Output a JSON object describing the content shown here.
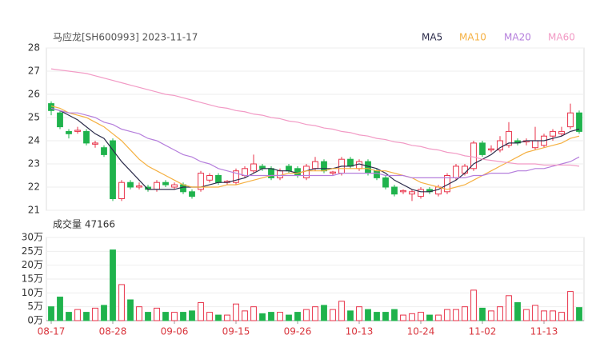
{
  "chart_data": {
    "type": "candlestick",
    "title": "马应龙[SH600993] 2023-11-17",
    "volume_title": "成交量 47166",
    "categories": [
      "08-17",
      null,
      null,
      null,
      null,
      null,
      null,
      "08-28",
      null,
      null,
      null,
      null,
      null,
      null,
      "09-06",
      null,
      null,
      null,
      null,
      null,
      null,
      "09-15",
      null,
      null,
      null,
      null,
      null,
      null,
      "09-26",
      null,
      null,
      null,
      null,
      null,
      null,
      "10-13",
      null,
      null,
      null,
      null,
      null,
      null,
      "10-24",
      null,
      null,
      null,
      null,
      null,
      null,
      "11-02",
      null,
      null,
      null,
      null,
      null,
      null,
      "11-13",
      null,
      null,
      null,
      null
    ],
    "open": [
      25.6,
      25.2,
      24.4,
      24.4,
      24.4,
      23.85,
      23.7,
      24.0,
      21.5,
      22.2,
      22.0,
      22.0,
      21.9,
      22.2,
      22.0,
      22.1,
      21.8,
      21.9,
      22.3,
      22.5,
      22.2,
      22.2,
      22.5,
      22.7,
      22.9,
      22.8,
      22.4,
      22.9,
      22.8,
      22.4,
      22.8,
      23.1,
      22.6,
      22.6,
      23.2,
      22.8,
      23.1,
      22.7,
      22.4,
      22.0,
      21.8,
      21.7,
      21.6,
      21.9,
      21.7,
      21.8,
      22.4,
      22.6,
      22.8,
      23.9,
      23.6,
      23.6,
      23.8,
      24.0,
      23.95,
      23.7,
      23.8,
      24.2,
      24.3,
      24.6,
      25.2
    ],
    "high": [
      25.7,
      25.3,
      24.5,
      24.6,
      24.5,
      24.0,
      23.8,
      24.1,
      22.3,
      22.3,
      22.2,
      22.1,
      22.3,
      22.3,
      22.2,
      22.2,
      21.9,
      22.7,
      22.6,
      22.6,
      22.3,
      22.8,
      22.9,
      23.4,
      23.0,
      22.9,
      22.8,
      23.0,
      22.9,
      23.0,
      23.3,
      23.2,
      22.7,
      23.3,
      23.3,
      23.2,
      23.2,
      22.8,
      22.5,
      22.1,
      21.9,
      21.9,
      22.0,
      22.0,
      22.1,
      22.6,
      23.0,
      23.0,
      24.0,
      24.0,
      23.8,
      24.2,
      24.8,
      24.1,
      24.1,
      24.6,
      24.3,
      24.5,
      24.6,
      25.6,
      25.3
    ],
    "low": [
      25.1,
      24.5,
      24.1,
      24.3,
      23.8,
      23.7,
      23.3,
      21.4,
      21.4,
      21.9,
      21.9,
      21.8,
      21.8,
      22.0,
      21.9,
      21.7,
      21.5,
      21.8,
      22.2,
      22.1,
      22.1,
      22.1,
      22.4,
      22.6,
      22.7,
      22.3,
      22.3,
      22.6,
      22.4,
      22.3,
      22.7,
      22.6,
      22.5,
      22.5,
      22.8,
      22.7,
      22.5,
      22.3,
      21.9,
      21.6,
      21.7,
      21.4,
      21.5,
      21.7,
      21.6,
      21.7,
      22.3,
      22.5,
      22.7,
      23.3,
      23.5,
      23.5,
      23.7,
      23.8,
      23.8,
      23.6,
      23.7,
      24.0,
      24.2,
      24.5,
      24.3
    ],
    "close": [
      25.3,
      24.6,
      24.3,
      24.45,
      23.9,
      23.9,
      23.4,
      21.5,
      22.2,
      22.0,
      22.05,
      21.9,
      22.2,
      22.1,
      22.1,
      21.8,
      21.6,
      22.6,
      22.5,
      22.2,
      22.25,
      22.7,
      22.8,
      23.0,
      22.8,
      22.4,
      22.7,
      22.7,
      22.5,
      22.9,
      23.1,
      22.7,
      22.65,
      23.2,
      22.9,
      23.1,
      22.6,
      22.4,
      22.0,
      21.7,
      21.85,
      21.8,
      21.9,
      21.8,
      22.0,
      22.5,
      22.9,
      22.9,
      23.9,
      23.4,
      23.65,
      24.0,
      24.4,
      23.9,
      24.0,
      24.0,
      24.2,
      24.4,
      24.4,
      25.2,
      24.4
    ],
    "volume": [
      5,
      8.5,
      3,
      4,
      3,
      4.5,
      5.5,
      25.5,
      13,
      7.5,
      5,
      3,
      4.5,
      3,
      3,
      3,
      3.5,
      6.5,
      3,
      2,
      2,
      6,
      3.5,
      5,
      2.5,
      3,
      3,
      2,
      3,
      4,
      5,
      5.5,
      4,
      7,
      3.5,
      5,
      4,
      3,
      3,
      4,
      2,
      2.5,
      3,
      2,
      2,
      4,
      4,
      5,
      11,
      4.5,
      3.5,
      5,
      9,
      6.5,
      4,
      5.5,
      3.5,
      3.5,
      3,
      10.5,
      4.7166
    ],
    "up_color": "#e8334a",
    "down_color": "#1fb34c",
    "ylim": [
      21,
      28
    ],
    "yticks": [
      21,
      22,
      23,
      24,
      25,
      26,
      27,
      28
    ],
    "vlim": [
      0,
      30
    ],
    "vticks": [
      {
        "value": 0,
        "label": "0万"
      },
      {
        "value": 5,
        "label": "5万"
      },
      {
        "value": 10,
        "label": "10万"
      },
      {
        "value": 15,
        "label": "15万"
      },
      {
        "value": 20,
        "label": "20万"
      },
      {
        "value": 25,
        "label": "25万"
      },
      {
        "value": 30,
        "label": "30万"
      }
    ],
    "series": [
      {
        "name": "MA5",
        "color": "#2b2b4a",
        "values": [
          25.4,
          25.3,
          25.1,
          24.9,
          24.6,
          24.3,
          24.1,
          23.6,
          23.1,
          22.7,
          22.3,
          21.9,
          21.9,
          21.9,
          21.9,
          22.0,
          22.0,
          22.0,
          22.1,
          22.2,
          22.2,
          22.3,
          22.4,
          22.6,
          22.8,
          22.8,
          22.7,
          22.7,
          22.6,
          22.7,
          22.8,
          22.8,
          22.8,
          22.9,
          22.9,
          23.0,
          22.9,
          22.8,
          22.6,
          22.3,
          22.1,
          21.9,
          21.8,
          21.8,
          21.9,
          22.1,
          22.3,
          22.6,
          23.0,
          23.2,
          23.4,
          23.7,
          23.9,
          23.9,
          24.0,
          24.0,
          24.0,
          24.1,
          24.2,
          24.4,
          24.5
        ]
      },
      {
        "name": "MA10",
        "color": "#f5b041",
        "values": [
          25.5,
          25.4,
          25.2,
          25.1,
          25.0,
          24.8,
          24.6,
          24.3,
          24.0,
          23.6,
          23.2,
          22.9,
          22.7,
          22.5,
          22.3,
          22.1,
          22.0,
          22.0,
          22.0,
          22.0,
          22.1,
          22.1,
          22.2,
          22.3,
          22.4,
          22.5,
          22.5,
          22.6,
          22.6,
          22.7,
          22.7,
          22.7,
          22.8,
          22.8,
          22.8,
          22.8,
          22.8,
          22.7,
          22.7,
          22.6,
          22.5,
          22.4,
          22.2,
          22.1,
          22.0,
          21.9,
          22.0,
          22.1,
          22.3,
          22.5,
          22.7,
          22.9,
          23.1,
          23.3,
          23.5,
          23.6,
          23.7,
          23.8,
          23.9,
          24.1,
          24.2
        ]
      },
      {
        "name": "MA20",
        "color": "#b57edc",
        "values": [
          25.4,
          25.3,
          25.2,
          25.2,
          25.1,
          25.0,
          24.8,
          24.7,
          24.5,
          24.4,
          24.3,
          24.1,
          24.0,
          23.8,
          23.6,
          23.4,
          23.3,
          23.1,
          23.0,
          22.8,
          22.7,
          22.6,
          22.5,
          22.5,
          22.5,
          22.5,
          22.5,
          22.5,
          22.5,
          22.5,
          22.5,
          22.5,
          22.5,
          22.6,
          22.6,
          22.6,
          22.6,
          22.6,
          22.5,
          22.5,
          22.5,
          22.4,
          22.4,
          22.4,
          22.4,
          22.4,
          22.4,
          22.4,
          22.5,
          22.5,
          22.6,
          22.6,
          22.6,
          22.7,
          22.7,
          22.8,
          22.8,
          22.9,
          23.0,
          23.1,
          23.3
        ]
      },
      {
        "name": "MA60",
        "color": "#f29ac5",
        "values": [
          27.1,
          27.05,
          27.0,
          26.95,
          26.9,
          26.8,
          26.7,
          26.6,
          26.5,
          26.4,
          26.3,
          26.2,
          26.1,
          26.0,
          25.95,
          25.85,
          25.75,
          25.65,
          25.55,
          25.45,
          25.4,
          25.3,
          25.25,
          25.15,
          25.1,
          25.0,
          24.95,
          24.85,
          24.8,
          24.7,
          24.65,
          24.55,
          24.5,
          24.4,
          24.35,
          24.25,
          24.2,
          24.1,
          24.05,
          23.95,
          23.9,
          23.8,
          23.75,
          23.65,
          23.6,
          23.5,
          23.45,
          23.35,
          23.3,
          23.2,
          23.15,
          23.1,
          23.05,
          23.0,
          23.0,
          23.0,
          22.95,
          22.95,
          22.95,
          22.95,
          22.9
        ]
      }
    ]
  }
}
